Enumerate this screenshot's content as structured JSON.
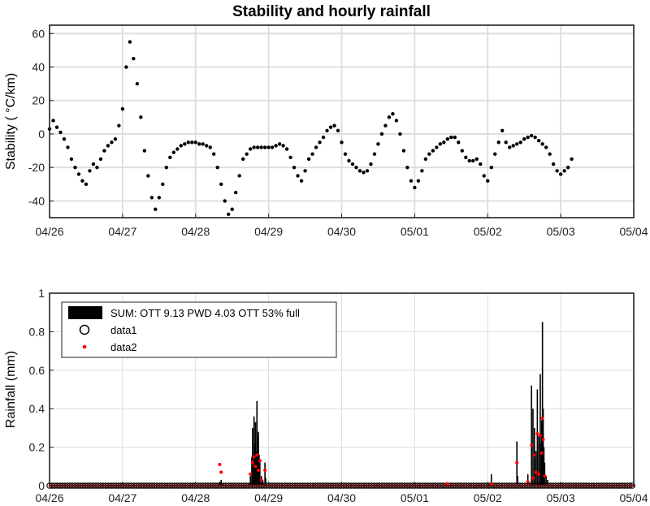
{
  "title": "Stability and hourly rainfall",
  "chart_data": [
    {
      "type": "scatter",
      "ylabel": "Stability (   °C/km)",
      "xlabel": "",
      "x_tick_labels": [
        "04/26",
        "04/27",
        "04/28",
        "04/29",
        "04/30",
        "05/01",
        "05/02",
        "05/03",
        "05/04"
      ],
      "x_unit": "days from 04/26 00:00",
      "xlim": [
        0,
        8
      ],
      "ylim": [
        -50,
        65
      ],
      "y_ticks": [
        -40,
        -20,
        0,
        20,
        40,
        60
      ],
      "grid": true,
      "marker_color": "#000000",
      "series": [
        {
          "values": [
            [
              0.0,
              3
            ],
            [
              0.05,
              8
            ],
            [
              0.1,
              4
            ],
            [
              0.15,
              1
            ],
            [
              0.2,
              -3
            ],
            [
              0.25,
              -8
            ],
            [
              0.3,
              -15
            ],
            [
              0.35,
              -20
            ],
            [
              0.4,
              -24
            ],
            [
              0.45,
              -28
            ],
            [
              0.5,
              -30
            ],
            [
              0.55,
              -22
            ],
            [
              0.6,
              -18
            ],
            [
              0.65,
              -20
            ],
            [
              0.7,
              -15
            ],
            [
              0.75,
              -10
            ],
            [
              0.8,
              -7
            ],
            [
              0.85,
              -5
            ],
            [
              0.9,
              -3
            ],
            [
              0.95,
              5
            ],
            [
              1.0,
              15
            ],
            [
              1.05,
              40
            ],
            [
              1.1,
              55
            ],
            [
              1.15,
              45
            ],
            [
              1.2,
              30
            ],
            [
              1.25,
              10
            ],
            [
              1.3,
              -10
            ],
            [
              1.35,
              -25
            ],
            [
              1.4,
              -38
            ],
            [
              1.45,
              -45
            ],
            [
              1.5,
              -38
            ],
            [
              1.55,
              -30
            ],
            [
              1.6,
              -20
            ],
            [
              1.65,
              -14
            ],
            [
              1.7,
              -11
            ],
            [
              1.75,
              -9
            ],
            [
              1.8,
              -7
            ],
            [
              1.85,
              -6
            ],
            [
              1.9,
              -5
            ],
            [
              1.95,
              -5
            ],
            [
              2.0,
              -5
            ],
            [
              2.05,
              -6
            ],
            [
              2.1,
              -6
            ],
            [
              2.15,
              -7
            ],
            [
              2.2,
              -8
            ],
            [
              2.25,
              -12
            ],
            [
              2.3,
              -20
            ],
            [
              2.35,
              -30
            ],
            [
              2.4,
              -40
            ],
            [
              2.45,
              -48
            ],
            [
              2.5,
              -45
            ],
            [
              2.55,
              -35
            ],
            [
              2.6,
              -25
            ],
            [
              2.65,
              -15
            ],
            [
              2.7,
              -12
            ],
            [
              2.75,
              -9
            ],
            [
              2.8,
              -8
            ],
            [
              2.85,
              -8
            ],
            [
              2.9,
              -8
            ],
            [
              2.95,
              -8
            ],
            [
              3.0,
              -8
            ],
            [
              3.05,
              -8
            ],
            [
              3.1,
              -7
            ],
            [
              3.15,
              -6
            ],
            [
              3.2,
              -7
            ],
            [
              3.25,
              -9
            ],
            [
              3.3,
              -14
            ],
            [
              3.35,
              -20
            ],
            [
              3.4,
              -25
            ],
            [
              3.45,
              -28
            ],
            [
              3.5,
              -22
            ],
            [
              3.55,
              -15
            ],
            [
              3.6,
              -12
            ],
            [
              3.65,
              -8
            ],
            [
              3.7,
              -5
            ],
            [
              3.75,
              -2
            ],
            [
              3.8,
              2
            ],
            [
              3.85,
              4
            ],
            [
              3.9,
              5
            ],
            [
              3.95,
              2
            ],
            [
              4.0,
              -5
            ],
            [
              4.05,
              -12
            ],
            [
              4.1,
              -16
            ],
            [
              4.15,
              -18
            ],
            [
              4.2,
              -20
            ],
            [
              4.25,
              -22
            ],
            [
              4.3,
              -23
            ],
            [
              4.35,
              -22
            ],
            [
              4.4,
              -18
            ],
            [
              4.45,
              -12
            ],
            [
              4.5,
              -6
            ],
            [
              4.55,
              0
            ],
            [
              4.6,
              5
            ],
            [
              4.65,
              10
            ],
            [
              4.7,
              12
            ],
            [
              4.75,
              8
            ],
            [
              4.8,
              0
            ],
            [
              4.85,
              -10
            ],
            [
              4.9,
              -20
            ],
            [
              4.95,
              -28
            ],
            [
              5.0,
              -32
            ],
            [
              5.05,
              -28
            ],
            [
              5.1,
              -22
            ],
            [
              5.15,
              -15
            ],
            [
              5.2,
              -12
            ],
            [
              5.25,
              -10
            ],
            [
              5.3,
              -8
            ],
            [
              5.35,
              -6
            ],
            [
              5.4,
              -5
            ],
            [
              5.45,
              -3
            ],
            [
              5.5,
              -2
            ],
            [
              5.55,
              -2
            ],
            [
              5.6,
              -5
            ],
            [
              5.65,
              -10
            ],
            [
              5.7,
              -14
            ],
            [
              5.75,
              -16
            ],
            [
              5.8,
              -16
            ],
            [
              5.85,
              -15
            ],
            [
              5.9,
              -18
            ],
            [
              5.95,
              -25
            ],
            [
              6.0,
              -28
            ],
            [
              6.05,
              -20
            ],
            [
              6.1,
              -12
            ],
            [
              6.15,
              -5
            ],
            [
              6.2,
              2
            ],
            [
              6.25,
              -5
            ],
            [
              6.3,
              -8
            ],
            [
              6.35,
              -7
            ],
            [
              6.4,
              -6
            ],
            [
              6.45,
              -5
            ],
            [
              6.5,
              -3
            ],
            [
              6.55,
              -2
            ],
            [
              6.6,
              -1
            ],
            [
              6.65,
              -2
            ],
            [
              6.7,
              -4
            ],
            [
              6.75,
              -6
            ],
            [
              6.8,
              -8
            ],
            [
              6.85,
              -12
            ],
            [
              6.9,
              -18
            ],
            [
              6.95,
              -22
            ],
            [
              7.0,
              -24
            ],
            [
              7.05,
              -22
            ],
            [
              7.1,
              -20
            ],
            [
              7.15,
              -15
            ]
          ]
        }
      ]
    },
    {
      "type": "bar",
      "ylabel": "Rainfall (mm)",
      "xlabel": "",
      "x_tick_labels": [
        "04/26",
        "04/27",
        "04/28",
        "04/29",
        "04/30",
        "05/01",
        "05/02",
        "05/03",
        "05/04"
      ],
      "x_unit": "days from 04/26 00:00",
      "xlim": [
        0,
        8
      ],
      "ylim": [
        0,
        1
      ],
      "y_ticks": [
        0,
        0.2,
        0.4,
        0.6,
        0.8,
        1
      ],
      "y_tick_labels": [
        "0",
        "0.2",
        "0.4",
        "0.6",
        "0.8",
        "1"
      ],
      "grid": true,
      "legend": {
        "placement": "top-left",
        "entries": [
          {
            "label": "SUM: OTT 9.13 PWD 4.03 OTT 53% full",
            "symbol": "filled-bar",
            "color": "#000000"
          },
          {
            "label": "data1",
            "symbol": "open-circle",
            "color": "#000000"
          },
          {
            "label": "data2",
            "symbol": "dot",
            "color": "#ff0000"
          }
        ]
      },
      "bar_color": "#000000",
      "bars": [
        [
          2.33,
          0.02
        ],
        [
          2.35,
          0.03
        ],
        [
          2.37,
          0.01
        ],
        [
          2.75,
          0.05
        ],
        [
          2.77,
          0.15
        ],
        [
          2.78,
          0.3
        ],
        [
          2.79,
          0.1
        ],
        [
          2.8,
          0.36
        ],
        [
          2.81,
          0.22
        ],
        [
          2.82,
          0.33
        ],
        [
          2.83,
          0.18
        ],
        [
          2.84,
          0.44
        ],
        [
          2.85,
          0.26
        ],
        [
          2.86,
          0.28
        ],
        [
          2.87,
          0.16
        ],
        [
          2.88,
          0.12
        ],
        [
          2.9,
          0.05
        ],
        [
          2.92,
          0.03
        ],
        [
          2.95,
          0.12
        ],
        [
          2.96,
          0.04
        ],
        [
          6.05,
          0.06
        ],
        [
          6.4,
          0.23
        ],
        [
          6.41,
          0.05
        ],
        [
          6.55,
          0.06
        ],
        [
          6.6,
          0.52
        ],
        [
          6.62,
          0.4
        ],
        [
          6.64,
          0.3
        ],
        [
          6.66,
          0.18
        ],
        [
          6.68,
          0.5
        ],
        [
          6.7,
          0.26
        ],
        [
          6.72,
          0.58
        ],
        [
          6.73,
          0.22
        ],
        [
          6.74,
          0.34
        ],
        [
          6.75,
          0.85
        ],
        [
          6.76,
          0.4
        ],
        [
          6.77,
          0.2
        ],
        [
          6.78,
          0.12
        ],
        [
          6.8,
          0.05
        ],
        [
          6.82,
          0.03
        ]
      ],
      "data1_circles_y": 0,
      "data2_points": [
        [
          2.33,
          0.11
        ],
        [
          2.35,
          0.07
        ],
        [
          2.75,
          0.06
        ],
        [
          2.78,
          0.12
        ],
        [
          2.8,
          0.15
        ],
        [
          2.82,
          0.1
        ],
        [
          2.84,
          0.16
        ],
        [
          2.86,
          0.08
        ],
        [
          2.88,
          0.13
        ],
        [
          2.9,
          0.03
        ],
        [
          2.95,
          0.08
        ],
        [
          5.45,
          0.01
        ],
        [
          6.05,
          0.01
        ],
        [
          6.4,
          0.12
        ],
        [
          6.55,
          0.02
        ],
        [
          6.6,
          0.21
        ],
        [
          6.62,
          0.04
        ],
        [
          6.64,
          0.16
        ],
        [
          6.66,
          0.07
        ],
        [
          6.68,
          0.27
        ],
        [
          6.7,
          0.06
        ],
        [
          6.72,
          0.26
        ],
        [
          6.74,
          0.17
        ],
        [
          6.75,
          0.35
        ],
        [
          6.76,
          0.24
        ],
        [
          6.78,
          0.05
        ]
      ]
    }
  ]
}
